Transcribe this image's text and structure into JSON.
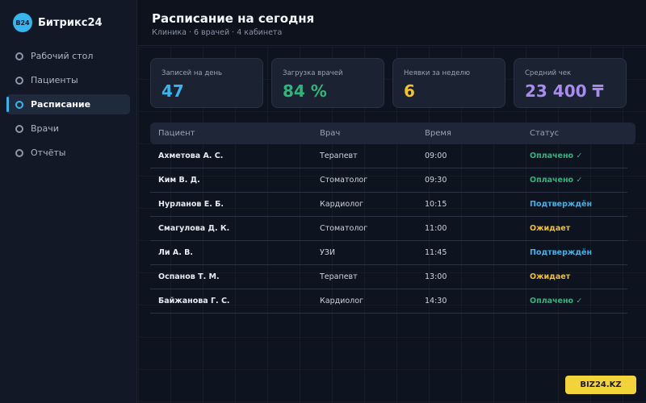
{
  "brand": {
    "logo_text": "B24",
    "name": "Битрикс24"
  },
  "sidebar": {
    "items": [
      {
        "label": "Рабочий стол",
        "active": false
      },
      {
        "label": "Пациенты",
        "active": false
      },
      {
        "label": "Расписание",
        "active": true
      },
      {
        "label": "Врачи",
        "active": false
      },
      {
        "label": "Отчёты",
        "active": false
      }
    ]
  },
  "header": {
    "title": "Расписание на сегодня",
    "subtitle": "Клиника · 6 врачей · 4 кабинета"
  },
  "stats": [
    {
      "label": "Записей на день",
      "value": "47",
      "color": "#36b5ee"
    },
    {
      "label": "Загрузка врачей",
      "value": "84 %",
      "color": "#2fb67c"
    },
    {
      "label": "Неявки за неделю",
      "value": "6",
      "color": "#f2c12e"
    },
    {
      "label": "Средний чек",
      "value": "23 400 ₸",
      "color": "#a98cf0"
    }
  ],
  "table": {
    "columns": [
      "Пациент",
      "Врач",
      "Время",
      "Статус"
    ],
    "rows": [
      {
        "patient": "Ахметова А. С.",
        "doctor": "Терапевт",
        "time": "09:00",
        "status": "Оплачено ✓",
        "status_color": "#2fb67c"
      },
      {
        "patient": "Ким В. Д.",
        "doctor": "Стоматолог",
        "time": "09:30",
        "status": "Оплачено ✓",
        "status_color": "#2fb67c"
      },
      {
        "patient": "Нурланов Е. Б.",
        "doctor": "Кардиолог",
        "time": "10:15",
        "status": "Подтверждён",
        "status_color": "#36b5ee"
      },
      {
        "patient": "Смагулова Д. К.",
        "doctor": "Стоматолог",
        "time": "11:00",
        "status": "Ожидает",
        "status_color": "#f2c12e"
      },
      {
        "patient": "Ли А. В.",
        "doctor": "УЗИ",
        "time": "11:45",
        "status": "Подтверждён",
        "status_color": "#36b5ee"
      },
      {
        "patient": "Оспанов Т. М.",
        "doctor": "Терапевт",
        "time": "13:00",
        "status": "Ожидает",
        "status_color": "#f2c12e"
      },
      {
        "patient": "Байжанова Г. С.",
        "doctor": "Кардиолог",
        "time": "14:30",
        "status": "Оплачено ✓",
        "status_color": "#2fb67c"
      }
    ]
  },
  "badge": {
    "label": "BIZ24.KZ"
  }
}
